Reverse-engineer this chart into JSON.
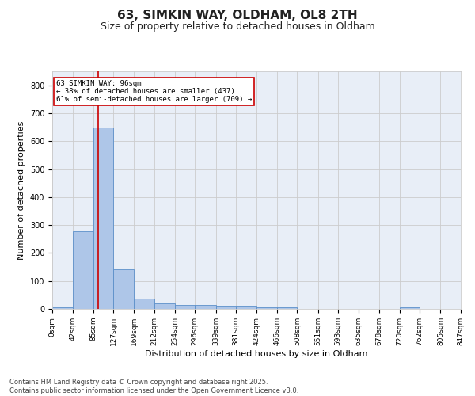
{
  "title1": "63, SIMKIN WAY, OLDHAM, OL8 2TH",
  "title2": "Size of property relative to detached houses in Oldham",
  "xlabel": "Distribution of detached houses by size in Oldham",
  "ylabel": "Number of detached properties",
  "bin_edges": [
    0,
    42,
    85,
    127,
    169,
    212,
    254,
    296,
    339,
    381,
    424,
    466,
    508,
    551,
    593,
    635,
    678,
    720,
    762,
    805,
    847
  ],
  "bar_heights": [
    5,
    278,
    648,
    143,
    38,
    20,
    14,
    13,
    12,
    10,
    7,
    5,
    0,
    0,
    0,
    0,
    0,
    5,
    0,
    0
  ],
  "bar_color": "#aec6e8",
  "bar_edgecolor": "#5b8fc9",
  "grid_color": "#cccccc",
  "background_color": "#e8eef7",
  "property_size": 96,
  "vline_color": "#cc0000",
  "annotation_text": "63 SIMKIN WAY: 96sqm\n← 38% of detached houses are smaller (437)\n61% of semi-detached houses are larger (709) →",
  "annotation_box_color": "#cc0000",
  "ylim": [
    0,
    850
  ],
  "yticks": [
    0,
    100,
    200,
    300,
    400,
    500,
    600,
    700,
    800
  ],
  "tick_labels": [
    "0sqm",
    "42sqm",
    "85sqm",
    "127sqm",
    "169sqm",
    "212sqm",
    "254sqm",
    "296sqm",
    "339sqm",
    "381sqm",
    "424sqm",
    "466sqm",
    "508sqm",
    "551sqm",
    "593sqm",
    "635sqm",
    "678sqm",
    "720sqm",
    "762sqm",
    "805sqm",
    "847sqm"
  ],
  "footer_text": "Contains HM Land Registry data © Crown copyright and database right 2025.\nContains public sector information licensed under the Open Government Licence v3.0.",
  "title_fontsize": 11,
  "subtitle_fontsize": 9,
  "axis_label_fontsize": 8,
  "tick_fontsize": 6.5,
  "footer_fontsize": 6
}
